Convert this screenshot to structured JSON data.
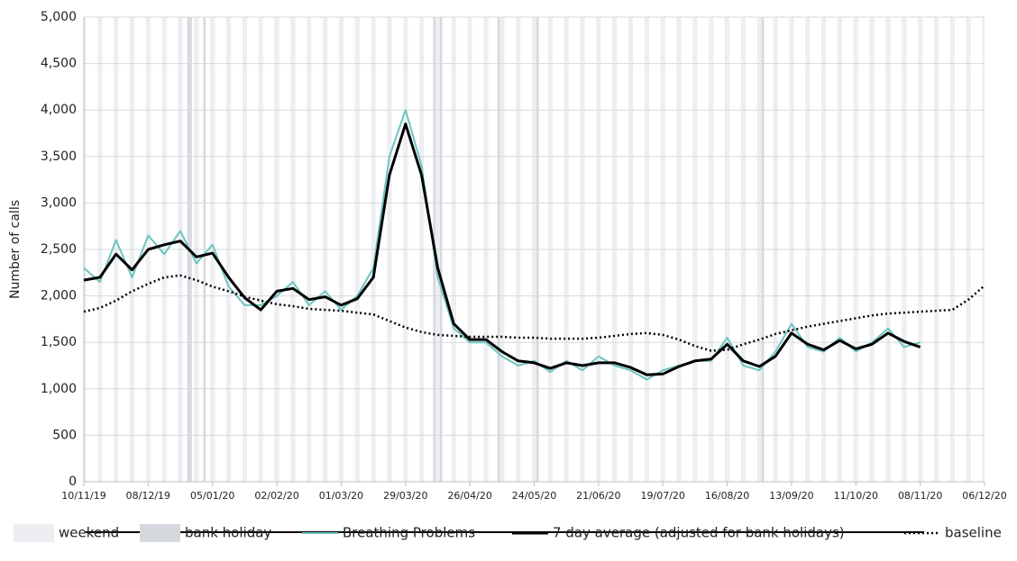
{
  "chart_data": {
    "type": "line",
    "y_label": "Number of calls",
    "ylim": [
      0,
      5000
    ],
    "yticks": [
      0,
      500,
      {
        "value": 1000,
        "label": "1,000"
      },
      {
        "value": 1500,
        "label": "1,500"
      },
      {
        "value": 2000,
        "label": "2,000"
      },
      {
        "value": 2500,
        "label": "2,500"
      },
      {
        "value": 3000,
        "label": "3,000"
      },
      {
        "value": 3500,
        "label": "3,500"
      },
      {
        "value": 4000,
        "label": "4,000"
      },
      {
        "value": 4500,
        "label": "4,500"
      },
      {
        "value": 5000,
        "label": "5,000"
      }
    ],
    "xlim": [
      "10/11/19",
      "06/12/20"
    ],
    "xticks": [
      "10/11/19",
      "08/12/19",
      "05/01/20",
      "02/02/20",
      "01/03/20",
      "29/03/20",
      "26/04/20",
      "24/05/20",
      "21/06/20",
      "19/07/20",
      "16/08/20",
      "13/09/20",
      "11/10/20",
      "08/11/20",
      "06/12/20"
    ],
    "grid": true,
    "bands": [
      {
        "name": "weekend",
        "color": "#eceef1"
      },
      {
        "name": "bank holiday",
        "color": "#d5d9de",
        "dates": [
          "25/12/19",
          "26/12/19",
          "01/01/20",
          "10/04/20",
          "13/04/20",
          "08/05/20",
          "25/05/20",
          "31/08/20"
        ]
      }
    ],
    "x": [
      "10/11/19",
      "17/11/19",
      "24/11/19",
      "01/12/19",
      "08/12/19",
      "15/12/19",
      "22/12/19",
      "29/12/19",
      "05/01/20",
      "12/01/20",
      "19/01/20",
      "26/01/20",
      "02/02/20",
      "09/02/20",
      "16/02/20",
      "23/02/20",
      "01/03/20",
      "08/03/20",
      "15/03/20",
      "22/03/20",
      "29/03/20",
      "05/04/20",
      "12/04/20",
      "19/04/20",
      "26/04/20",
      "03/05/20",
      "10/05/20",
      "17/05/20",
      "24/05/20",
      "31/05/20",
      "07/06/20",
      "14/06/20",
      "21/06/20",
      "28/06/20",
      "05/07/20",
      "12/07/20",
      "19/07/20",
      "26/07/20",
      "02/08/20",
      "09/08/20",
      "16/08/20",
      "23/08/20",
      "30/08/20",
      "06/09/20",
      "13/09/20",
      "20/09/20",
      "27/09/20",
      "04/10/20",
      "11/10/20",
      "18/10/20",
      "25/10/20",
      "01/11/20",
      "08/11/20",
      "15/11/20",
      "22/11/20",
      "29/11/20",
      "06/12/20"
    ],
    "series": [
      {
        "name": "Breathing Problems",
        "color": "#6cc5c0",
        "width": 2,
        "style": "solid",
        "values": [
          2300,
          2150,
          2600,
          2200,
          2650,
          2450,
          2700,
          2350,
          2550,
          2100,
          1900,
          1900,
          2000,
          2150,
          1900,
          2050,
          1850,
          2000,
          2300,
          3500,
          4000,
          3400,
          2200,
          1650,
          1500,
          1500,
          1350,
          1250,
          1300,
          1180,
          1300,
          1200,
          1350,
          1250,
          1200,
          1100,
          1200,
          1250,
          1300,
          1300,
          1550,
          1250,
          1200,
          1400,
          1700,
          1450,
          1400,
          1550,
          1400,
          1500,
          1650,
          1450,
          1500,
          null,
          null,
          null,
          null
        ]
      },
      {
        "name": "7 day average (adjusted for bank holidays)",
        "color": "#000000",
        "width": 3,
        "style": "solid",
        "values": [
          2170,
          2200,
          2450,
          2280,
          2500,
          2550,
          2590,
          2420,
          2460,
          2200,
          1980,
          1850,
          2050,
          2080,
          1960,
          1990,
          1900,
          1970,
          2200,
          3300,
          3850,
          3300,
          2300,
          1700,
          1530,
          1530,
          1400,
          1300,
          1280,
          1220,
          1280,
          1250,
          1280,
          1280,
          1230,
          1150,
          1160,
          1240,
          1300,
          1320,
          1480,
          1300,
          1240,
          1350,
          1600,
          1480,
          1420,
          1520,
          1430,
          1480,
          1600,
          1510,
          1450,
          null,
          null,
          null,
          null
        ]
      },
      {
        "name": "baseline",
        "color": "#000000",
        "width": 2.5,
        "style": "dotted",
        "values": [
          1830,
          1870,
          1950,
          2050,
          2130,
          2200,
          2220,
          2170,
          2100,
          2050,
          1990,
          1950,
          1910,
          1890,
          1860,
          1850,
          1840,
          1820,
          1800,
          1730,
          1660,
          1610,
          1580,
          1570,
          1560,
          1560,
          1560,
          1550,
          1550,
          1540,
          1540,
          1540,
          1550,
          1570,
          1590,
          1600,
          1580,
          1530,
          1460,
          1410,
          1420,
          1480,
          1530,
          1590,
          1630,
          1670,
          1700,
          1730,
          1760,
          1790,
          1810,
          1820,
          1830,
          1840,
          1850,
          1960,
          2110
        ]
      }
    ]
  }
}
